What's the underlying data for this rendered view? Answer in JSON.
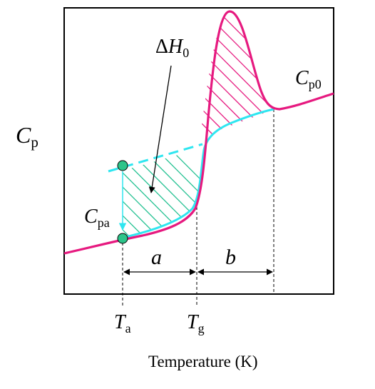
{
  "labels": {
    "y_axis_symbol": "C",
    "y_axis_subscript": "p",
    "delta_h_prefix": "Δ",
    "delta_h_symbol": "H",
    "delta_h_subscript": "0",
    "cp0_symbol": "C",
    "cp0_subscript": "p0",
    "cpa_symbol": "C",
    "cpa_subscript": "pa",
    "interval_a": "a",
    "interval_b": "b",
    "ta_symbol": "T",
    "ta_subscript": "a",
    "tg_symbol": "T",
    "tg_subscript": "g",
    "x_axis_label": "Temperature (K)"
  },
  "colors": {
    "magenta_curve": "#e6197f",
    "cyan_curve": "#2ee6f0",
    "teal_hatch": "#1fbf8f",
    "marker_fill": "#2cc48a",
    "axis": "#000000"
  }
}
